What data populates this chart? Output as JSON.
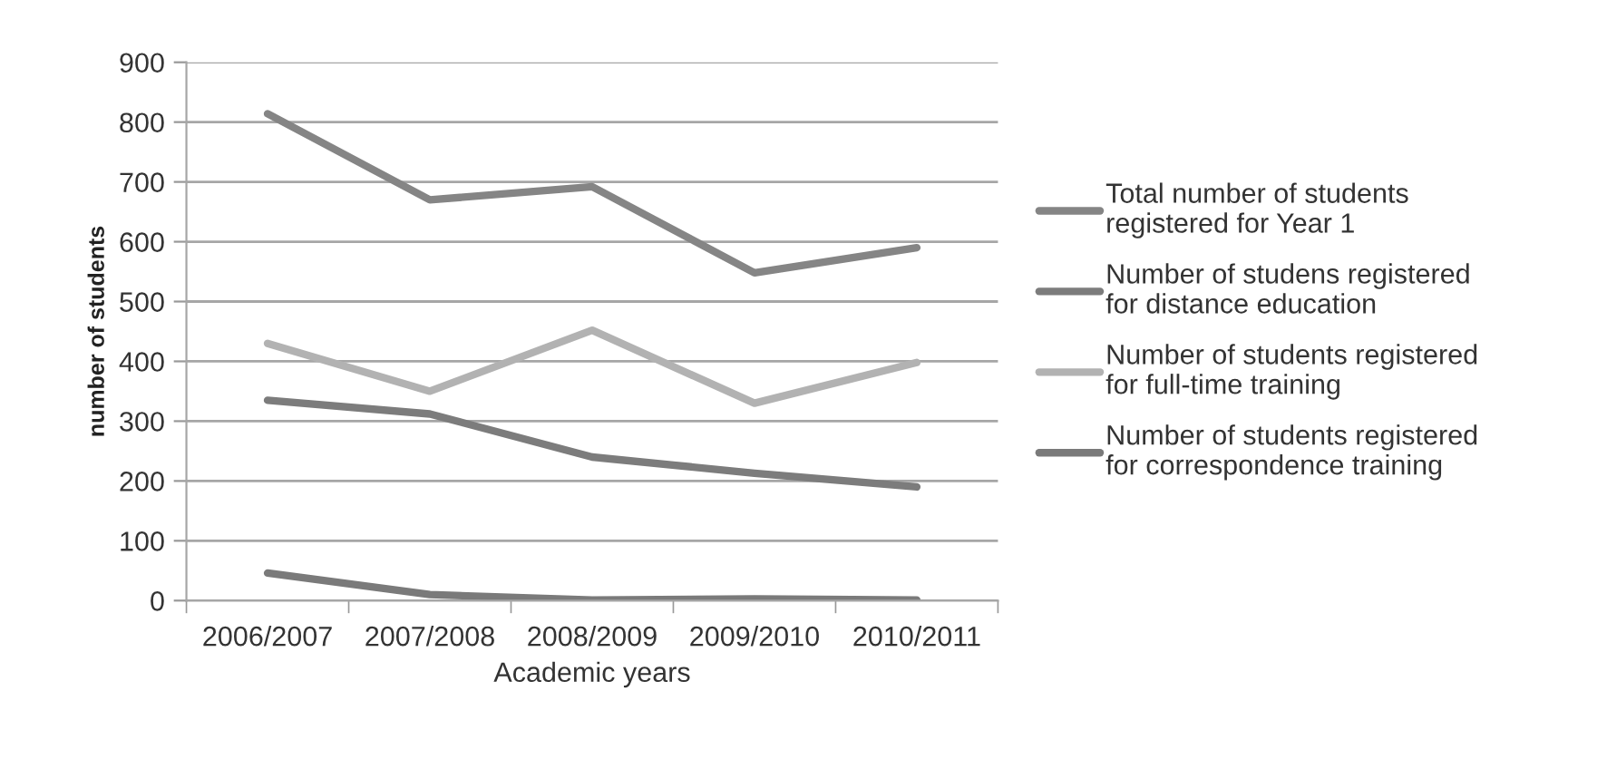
{
  "chart_data": {
    "type": "line",
    "xlabel": "Academic years",
    "ylabel": "number of students",
    "categories": [
      "2006/2007",
      "2007/2008",
      "2008/2009",
      "2009/2010",
      "2010/2011"
    ],
    "series": [
      {
        "name": "Total number of students\nregistered for Year 1",
        "color": "#858585",
        "values": [
          814,
          670,
          692,
          548,
          590
        ]
      },
      {
        "name": "Number of studens registered\nfor distance education",
        "color": "#7c7c7c",
        "values": [
          335,
          312,
          240,
          213,
          190
        ]
      },
      {
        "name": "Number of students registered\nfor full-time training",
        "color": "#b2b2b2",
        "values": [
          430,
          350,
          452,
          330,
          398
        ]
      },
      {
        "name": "Number of students registered\nfor correspondence training",
        "color": "#7a7a7a",
        "values": [
          46,
          10,
          1,
          3,
          1
        ]
      }
    ],
    "ylim": [
      0,
      900
    ],
    "yticks": [
      0,
      100,
      200,
      300,
      400,
      500,
      600,
      700,
      800,
      900
    ],
    "grid": "y",
    "legend": "right",
    "marker": "none",
    "line_style": "solid"
  }
}
